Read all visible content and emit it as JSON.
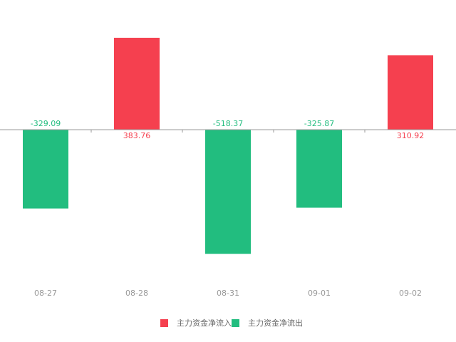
{
  "chart_data": {
    "type": "bar",
    "categories": [
      "08-27",
      "08-28",
      "08-31",
      "09-01",
      "09-02"
    ],
    "series": [
      {
        "name": "主力资金净流入",
        "color": "#f5404f",
        "values": [
          null,
          383.76,
          null,
          null,
          310.92
        ]
      },
      {
        "name": "主力资金净流出",
        "color": "#22bd7f",
        "values": [
          -329.09,
          null,
          -518.37,
          -325.87,
          null
        ]
      }
    ]
  }
}
